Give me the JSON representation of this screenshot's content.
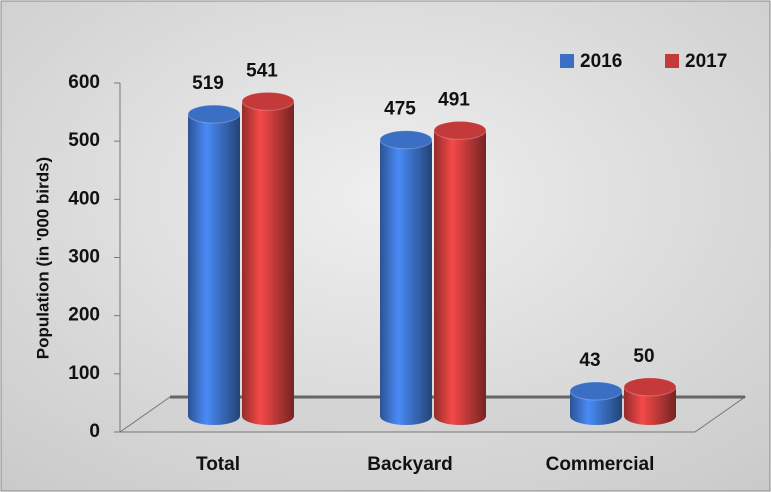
{
  "chart_data": {
    "type": "bar",
    "y_label": "Population  (in '000 birds)",
    "categories": [
      "Total",
      "Backyard",
      "Commercial"
    ],
    "series": [
      {
        "name": "2016",
        "color": "#3a6fc4",
        "values": [
          519,
          475,
          43
        ]
      },
      {
        "name": "2017",
        "color": "#c43a3a",
        "values": [
          541,
          491,
          50
        ]
      }
    ],
    "ylim": [
      0,
      600
    ],
    "yticks": [
      0,
      100,
      200,
      300,
      400,
      500,
      600
    ],
    "legend": "top-right"
  }
}
